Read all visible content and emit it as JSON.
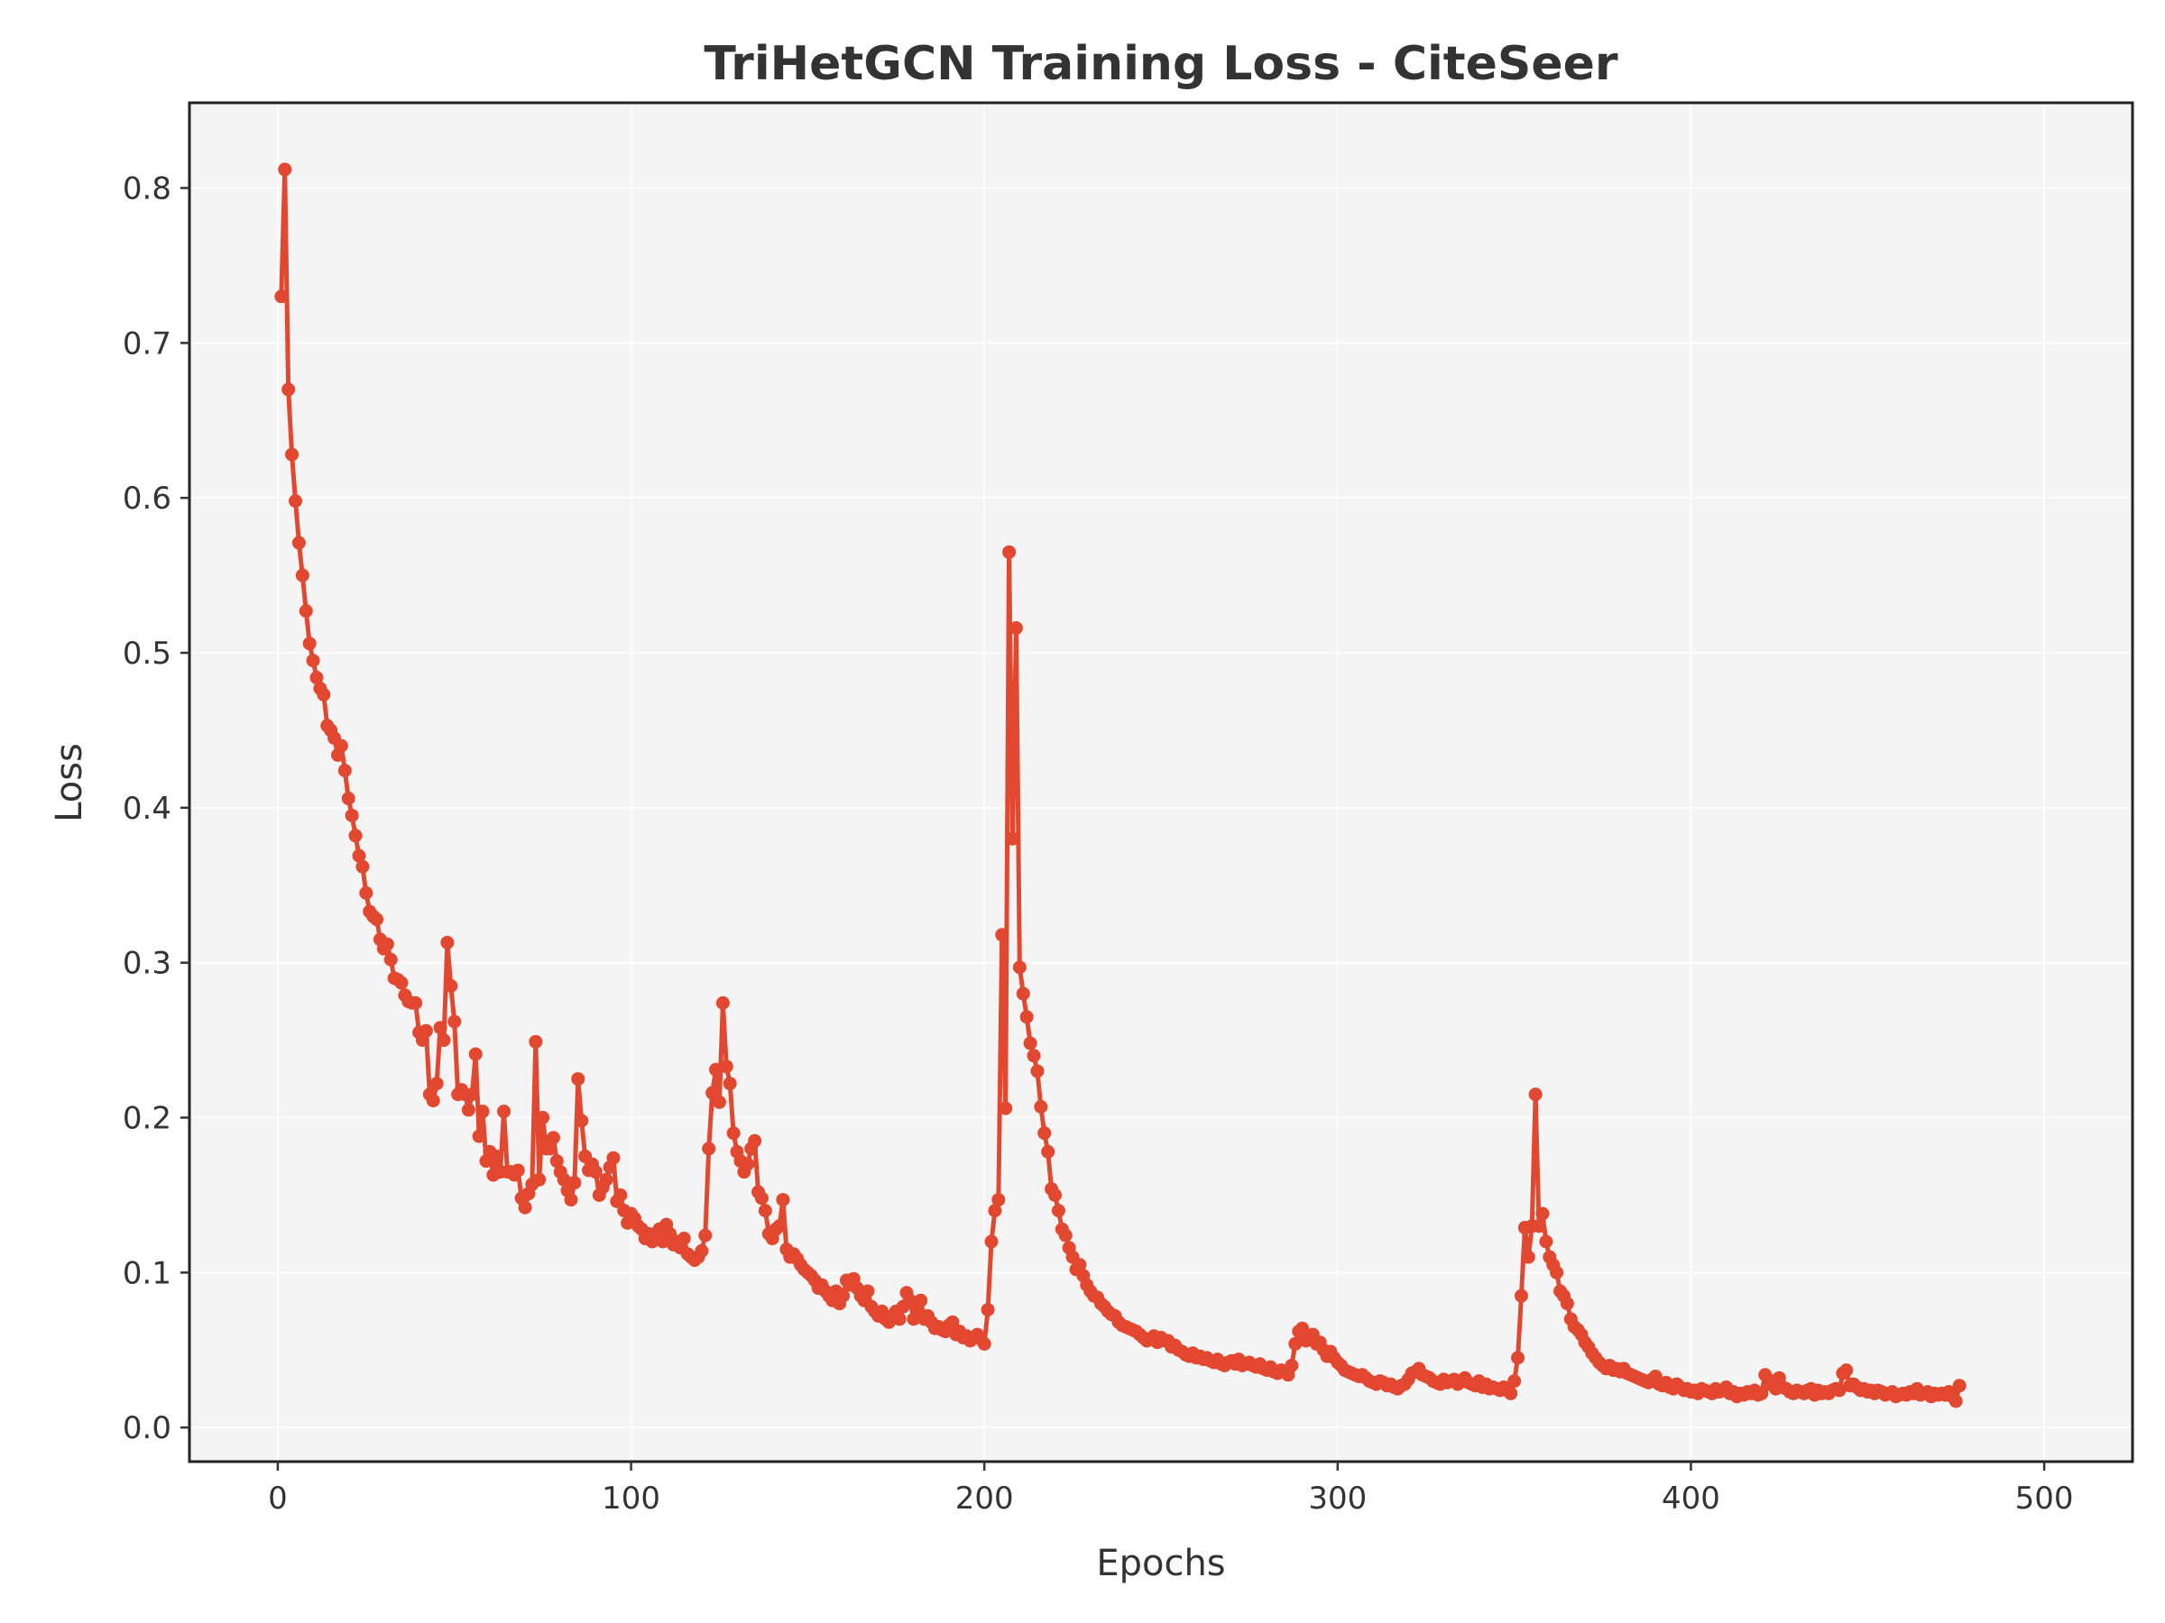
{
  "chart_data": {
    "type": "line",
    "title": "TriHetGCN Training Loss - CiteSeer",
    "xlabel": "Epochs",
    "ylabel": "Loss",
    "xlim": [
      -25,
      525
    ],
    "ylim": [
      -0.022,
      0.855
    ],
    "xticks": [
      0,
      100,
      200,
      300,
      400,
      500
    ],
    "yticks": [
      0.0,
      0.1,
      0.2,
      0.3,
      0.4,
      0.5,
      0.6,
      0.7,
      0.8
    ],
    "ytick_labels": [
      "0.0",
      "0.1",
      "0.2",
      "0.3",
      "0.4",
      "0.5",
      "0.6",
      "0.7",
      "0.8"
    ],
    "grid": true,
    "legend": "none",
    "colors": {
      "line": "#e2472f",
      "plot_bg": "#f4f4f4",
      "text": "#333333",
      "tick": "#333333"
    },
    "series": [
      {
        "x_start": 1,
        "values": [
          0.73,
          0.812,
          0.67,
          0.628,
          0.598,
          0.571,
          0.55,
          0.527,
          0.506,
          0.495,
          0.484,
          0.477,
          0.473,
          0.453,
          0.45,
          0.445,
          0.434,
          0.44,
          0.424,
          0.406,
          0.395,
          0.382,
          0.369,
          0.362,
          0.345,
          0.333,
          0.33,
          0.328,
          0.315,
          0.309,
          0.312,
          0.302,
          0.29,
          0.289,
          0.287,
          0.279,
          0.275,
          0.274,
          0.274,
          0.255,
          0.25,
          0.256,
          0.215,
          0.211,
          0.222,
          0.258,
          0.25,
          0.313,
          0.285,
          0.262,
          0.215,
          0.218,
          0.215,
          0.205,
          0.215,
          0.241,
          0.188,
          0.204,
          0.172,
          0.178,
          0.163,
          0.175,
          0.165,
          0.204,
          0.165,
          0.165,
          0.163,
          0.166,
          0.148,
          0.142,
          0.151,
          0.157,
          0.249,
          0.16,
          0.2,
          0.18,
          0.18,
          0.187,
          0.172,
          0.165,
          0.16,
          0.153,
          0.147,
          0.158,
          0.225,
          0.198,
          0.175,
          0.166,
          0.17,
          0.165,
          0.15,
          0.155,
          0.16,
          0.168,
          0.174,
          0.146,
          0.15,
          0.14,
          0.132,
          0.138,
          0.135,
          0.13,
          0.128,
          0.122,
          0.125,
          0.12,
          0.125,
          0.128,
          0.12,
          0.131,
          0.125,
          0.118,
          0.12,
          0.116,
          0.122,
          0.112,
          0.11,
          0.108,
          0.11,
          0.114,
          0.124,
          0.18,
          0.216,
          0.231,
          0.21,
          0.274,
          0.233,
          0.222,
          0.19,
          0.178,
          0.172,
          0.165,
          0.17,
          0.18,
          0.185,
          0.152,
          0.148,
          0.14,
          0.125,
          0.122,
          0.128,
          0.13,
          0.147,
          0.115,
          0.11,
          0.112,
          0.109,
          0.105,
          0.102,
          0.1,
          0.098,
          0.095,
          0.09,
          0.092,
          0.088,
          0.085,
          0.082,
          0.088,
          0.08,
          0.085,
          0.095,
          0.092,
          0.096,
          0.09,
          0.085,
          0.082,
          0.088,
          0.078,
          0.075,
          0.072,
          0.075,
          0.07,
          0.068,
          0.072,
          0.075,
          0.07,
          0.078,
          0.087,
          0.082,
          0.07,
          0.075,
          0.082,
          0.07,
          0.072,
          0.068,
          0.064,
          0.065,
          0.063,
          0.062,
          0.066,
          0.068,
          0.06,
          0.062,
          0.058,
          0.059,
          0.056,
          0.058,
          0.06,
          0.057,
          0.054,
          0.076,
          0.12,
          0.14,
          0.147,
          0.318,
          0.206,
          0.565,
          0.38,
          0.516,
          0.297,
          0.28,
          0.265,
          0.248,
          0.24,
          0.23,
          0.207,
          0.19,
          0.178,
          0.154,
          0.15,
          0.14,
          0.128,
          0.124,
          0.116,
          0.11,
          0.102,
          0.105,
          0.098,
          0.092,
          0.088,
          0.085,
          0.084,
          0.08,
          0.078,
          0.075,
          0.073,
          0.072,
          0.068,
          0.066,
          0.065,
          0.064,
          0.063,
          0.062,
          0.06,
          0.058,
          0.056,
          0.057,
          0.059,
          0.055,
          0.058,
          0.056,
          0.056,
          0.052,
          0.053,
          0.05,
          0.049,
          0.047,
          0.046,
          0.048,
          0.045,
          0.046,
          0.044,
          0.045,
          0.043,
          0.042,
          0.044,
          0.041,
          0.04,
          0.042,
          0.043,
          0.041,
          0.044,
          0.04,
          0.041,
          0.042,
          0.04,
          0.039,
          0.041,
          0.038,
          0.037,
          0.039,
          0.036,
          0.035,
          0.037,
          0.036,
          0.034,
          0.04,
          0.054,
          0.062,
          0.064,
          0.056,
          0.058,
          0.06,
          0.054,
          0.055,
          0.05,
          0.046,
          0.049,
          0.045,
          0.042,
          0.04,
          0.037,
          0.036,
          0.035,
          0.034,
          0.033,
          0.034,
          0.032,
          0.03,
          0.029,
          0.028,
          0.03,
          0.029,
          0.027,
          0.028,
          0.026,
          0.025,
          0.027,
          0.028,
          0.031,
          0.035,
          0.036,
          0.038,
          0.034,
          0.033,
          0.032,
          0.03,
          0.029,
          0.028,
          0.031,
          0.029,
          0.03,
          0.031,
          0.028,
          0.03,
          0.032,
          0.029,
          0.028,
          0.027,
          0.03,
          0.026,
          0.028,
          0.025,
          0.026,
          0.025,
          0.024,
          0.026,
          0.024,
          0.022,
          0.03,
          0.045,
          0.085,
          0.129,
          0.11,
          0.13,
          0.215,
          0.13,
          0.138,
          0.12,
          0.11,
          0.105,
          0.1,
          0.088,
          0.085,
          0.08,
          0.07,
          0.065,
          0.063,
          0.06,
          0.055,
          0.052,
          0.048,
          0.045,
          0.042,
          0.04,
          0.038,
          0.04,
          0.037,
          0.038,
          0.036,
          0.038,
          0.035,
          0.034,
          0.033,
          0.032,
          0.031,
          0.03,
          0.029,
          0.031,
          0.033,
          0.028,
          0.027,
          0.029,
          0.026,
          0.025,
          0.028,
          0.026,
          0.024,
          0.025,
          0.023,
          0.024,
          0.022,
          0.025,
          0.024,
          0.023,
          0.022,
          0.025,
          0.023,
          0.024,
          0.026,
          0.022,
          0.023,
          0.02,
          0.022,
          0.021,
          0.023,
          0.022,
          0.024,
          0.021,
          0.022,
          0.034,
          0.028,
          0.03,
          0.025,
          0.032,
          0.026,
          0.025,
          0.023,
          0.022,
          0.024,
          0.023,
          0.022,
          0.024,
          0.025,
          0.021,
          0.024,
          0.022,
          0.023,
          0.022,
          0.024,
          0.025,
          0.024,
          0.035,
          0.037,
          0.027,
          0.028,
          0.026,
          0.024,
          0.025,
          0.023,
          0.024,
          0.022,
          0.024,
          0.023,
          0.021,
          0.022,
          0.023,
          0.02,
          0.021,
          0.022,
          0.021,
          0.023,
          0.022,
          0.025,
          0.021,
          0.022,
          0.023,
          0.02,
          0.022,
          0.021,
          0.022,
          0.021,
          0.023,
          0.02,
          0.017,
          0.027
        ]
      }
    ]
  }
}
